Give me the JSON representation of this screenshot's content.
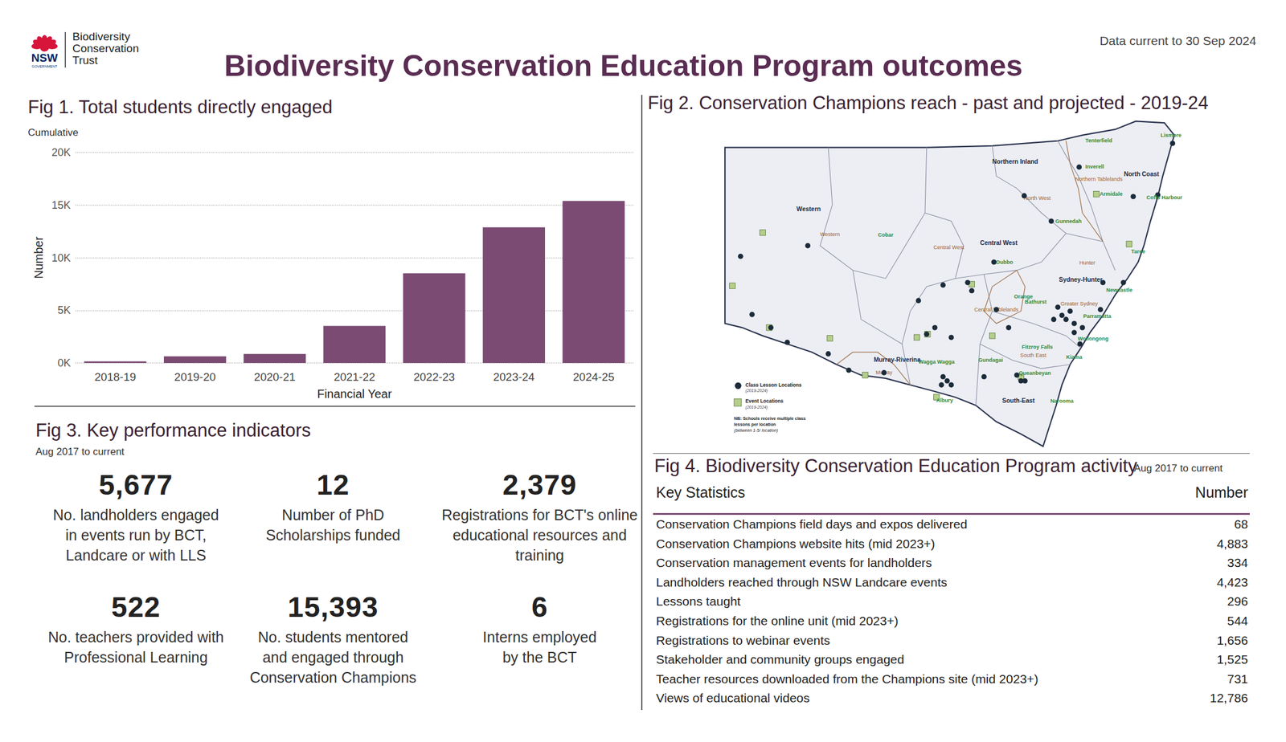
{
  "header": {
    "gov": "NSW",
    "gov_sub": "GOVERNMENT",
    "org": [
      "Biodiversity",
      "Conservation",
      "Trust"
    ],
    "title": "Biodiversity Conservation Education Program outcomes",
    "data_current": "Data current to 30 Sep 2024"
  },
  "chart_data": {
    "type": "bar",
    "title": "Fig 1. Total students directly engaged",
    "subtitle": "Cumulative",
    "x_label": "Financial Year",
    "y_label": "Number",
    "categories": [
      "2018-19",
      "2019-20",
      "2020-21",
      "2021-22",
      "2022-23",
      "2023-24",
      "2024-25"
    ],
    "values": [
      150,
      630,
      860,
      3520,
      8520,
      12890,
      15393
    ],
    "color": "#7b4b73",
    "ylim": [
      0,
      20000
    ],
    "yticks": [
      {
        "value": 0,
        "label": "0K"
      },
      {
        "value": 5000,
        "label": "5K"
      },
      {
        "value": 10000,
        "label": "10K"
      },
      {
        "value": 15000,
        "label": "15K"
      },
      {
        "value": 20000,
        "label": "20K"
      }
    ],
    "grid": true
  },
  "map": {
    "title": "Fig 2. Conservation Champions reach - past and projected - 2019-24",
    "regions": [
      "Northern Inland",
      "Western",
      "Central West",
      "Sydney-Hunter",
      "Murray-Riverina",
      "South-East",
      "North Coast"
    ],
    "subregions": [
      "North West",
      "Western",
      "Central West",
      "Central Tablelands",
      "Hunter",
      "Murray",
      "South East",
      "Northern Tablelands",
      "Greater Sydney"
    ],
    "towns": [
      "Lismore",
      "Tenterfield",
      "Inverell",
      "Armidale",
      "Coffs Harbour",
      "Gunnedah",
      "Taree",
      "Cobar",
      "Dubbo",
      "Orange",
      "Bathurst",
      "Newcastle",
      "Parramatta",
      "Wollongong",
      "Fitzroy Falls",
      "Kiama",
      "Wagga Wagga",
      "Gundagai",
      "Queanbeyan",
      "Albury",
      "Narooma"
    ],
    "legend": {
      "lessons": "Class Lesson Locations",
      "lessons_period": "(2019-2024)",
      "events": "Event Locations",
      "events_period": "(2019-2024)",
      "note": [
        "NB: Schools receive multiple class",
        "lessons per location",
        "(between 1-5/ location)"
      ]
    }
  },
  "kpis": {
    "title": "Fig 3. Key performance indicators",
    "subtitle": "Aug 2017 to current",
    "items": [
      {
        "value": "5,677",
        "label": [
          "No. landholders engaged",
          "in events run by BCT,",
          "Landcare or with LLS"
        ]
      },
      {
        "value": "12",
        "label": [
          "Number of PhD",
          "Scholarships funded"
        ]
      },
      {
        "value": "2,379",
        "label": [
          "Registrations for BCT's online",
          "educational resources and",
          "training"
        ]
      },
      {
        "value": "522",
        "label": [
          "No. teachers provided with",
          "Professional Learning"
        ]
      },
      {
        "value": "15,393",
        "label": [
          "No. students mentored",
          "and engaged through",
          "Conservation Champions"
        ]
      },
      {
        "value": "6",
        "label": [
          "Interns employed",
          "by the BCT"
        ]
      }
    ]
  },
  "activity": {
    "title": "Fig 4. Biodiversity Conservation Education Program activity",
    "subtitle": "Aug 2017 to current",
    "header": [
      "Key Statistics",
      "Number"
    ],
    "rows": [
      [
        "Conservation Champions field days and expos delivered",
        "68"
      ],
      [
        "Conservation Champions website hits (mid 2023+)",
        "4,883"
      ],
      [
        "Conservation management events for landholders",
        "334"
      ],
      [
        "Landholders reached through NSW Landcare events",
        "4,423"
      ],
      [
        "Lessons taught",
        "296"
      ],
      [
        "Registrations for the online unit (mid 2023+)",
        "544"
      ],
      [
        "Registrations to webinar events",
        "1,656"
      ],
      [
        "Stakeholder and community groups engaged",
        "1,525"
      ],
      [
        "Teacher resources downloaded from the Champions site (mid 2023+)",
        "731"
      ],
      [
        "Views of educational videos",
        "12,786"
      ]
    ]
  }
}
